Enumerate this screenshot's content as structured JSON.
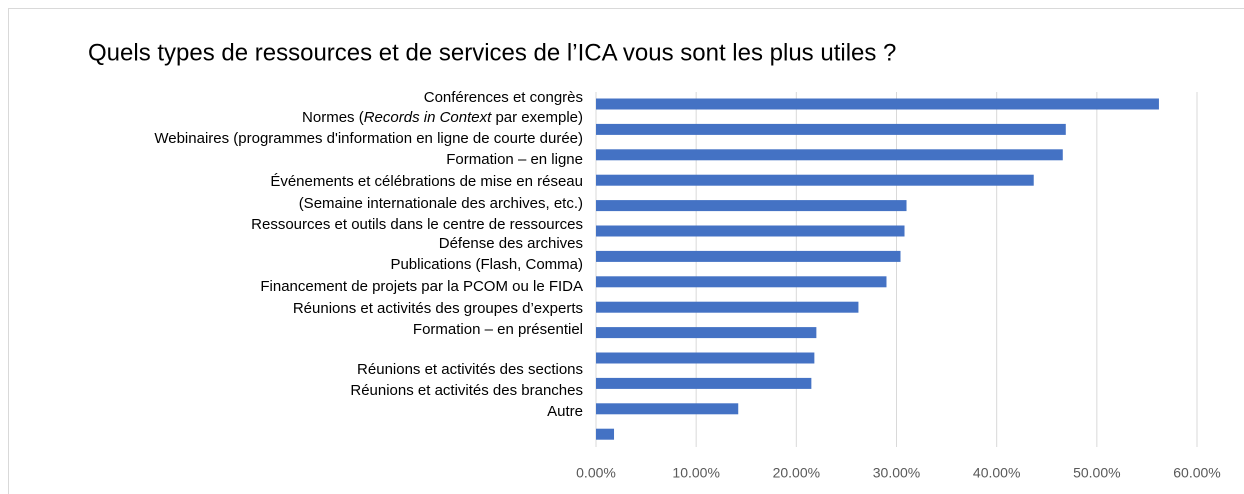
{
  "chart_data": {
    "type": "barh",
    "title": "Quels types de ressources et de services de l’ICA vous sont les plus utiles ?",
    "categories": [
      [
        "Conférences et congrès"
      ],
      [
        "Normes (",
        "Records in Context",
        " par exemple)"
      ],
      [
        "Webinaires (programmes d'information en ligne de courte durée)"
      ],
      [
        "Formation – en ligne"
      ],
      [
        "Événements et célébrations de mise en réseau",
        "(Semaine internationale des archives, etc.)"
      ],
      [
        "Ressources et outils dans le centre de ressources"
      ],
      [
        "Défense des archives"
      ],
      [
        "Publications (Flash, Comma)"
      ],
      [
        "Financement de projets par la PCOM ou le FIDA"
      ],
      [
        "Réunions et activités des groupes d’experts"
      ],
      [
        "Formation – en présentiel"
      ],
      [
        "Réunions et activités des sections"
      ],
      [
        "Réunions et activités des branches"
      ],
      [
        "Autre"
      ]
    ],
    "values": [
      56.2,
      46.9,
      46.6,
      43.7,
      31.0,
      30.8,
      30.4,
      29.0,
      26.2,
      22.0,
      21.8,
      21.5,
      14.2,
      1.8
    ],
    "color": "#4472c4",
    "xlim": [
      0,
      60
    ],
    "xticks": [
      {
        "value": 0,
        "label": "0.00%"
      },
      {
        "value": 10,
        "label": "10.00%"
      },
      {
        "value": 20,
        "label": "20.00%"
      },
      {
        "value": 30,
        "label": "30.00%"
      },
      {
        "value": 40,
        "label": "40.00%"
      },
      {
        "value": 50,
        "label": "50.00%"
      },
      {
        "value": 60,
        "label": "60.00%"
      }
    ],
    "grid": true
  }
}
